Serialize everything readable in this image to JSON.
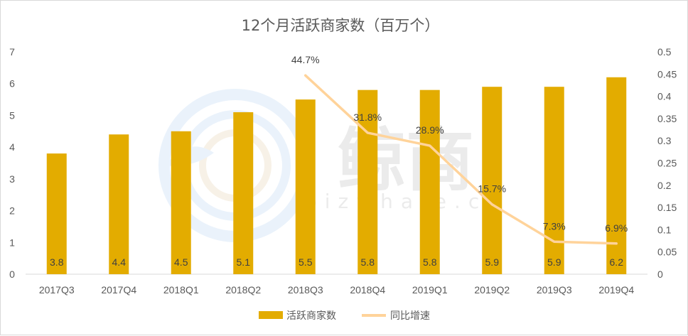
{
  "colors": {
    "bar": "#E3AC00",
    "line": "#FFD39A",
    "axis_text": "#595959",
    "label_text": "#404040",
    "gridline": "#d9d9d9"
  },
  "watermark": {
    "brand_text": "鲸商",
    "domain_text": "bizwhale.cn"
  },
  "chart_data": {
    "type": "bar",
    "title": "12个月活跃商家数（百万个）",
    "categories": [
      "2017Q3",
      "2017Q4",
      "2018Q1",
      "2018Q2",
      "2018Q3",
      "2018Q4",
      "2019Q1",
      "2019Q2",
      "2019Q3",
      "2019Q4"
    ],
    "series": [
      {
        "name": "活跃商家数",
        "type": "bar",
        "axis": "left",
        "values": [
          3.8,
          4.4,
          4.5,
          5.1,
          5.5,
          5.8,
          5.8,
          5.9,
          5.9,
          6.2
        ],
        "labels": [
          "3.8",
          "4.4",
          "4.5",
          "5.1",
          "5.5",
          "5.8",
          "5.8",
          "5.9",
          "5.9",
          "6.2"
        ]
      },
      {
        "name": "同比增速",
        "type": "line",
        "axis": "right",
        "x": [
          "2018Q3",
          "2018Q4",
          "2019Q1",
          "2019Q2",
          "2019Q3",
          "2019Q4"
        ],
        "values": [
          0.447,
          0.318,
          0.289,
          0.157,
          0.073,
          0.069
        ],
        "labels": [
          "44.7%",
          "31.8%",
          "28.9%",
          "15.7%",
          "7.3%",
          "6.9%"
        ]
      }
    ],
    "y_left": {
      "min": 0,
      "max": 7,
      "ticks": [
        "0",
        "1",
        "2",
        "3",
        "4",
        "5",
        "6",
        "7"
      ]
    },
    "y_right": {
      "min": 0,
      "max": 0.5,
      "ticks": [
        "0",
        "0.05",
        "0.1",
        "0.15",
        "0.2",
        "0.25",
        "0.3",
        "0.35",
        "0.4",
        "0.45",
        "0.5"
      ]
    },
    "grid": false,
    "legend_position": "bottom"
  }
}
